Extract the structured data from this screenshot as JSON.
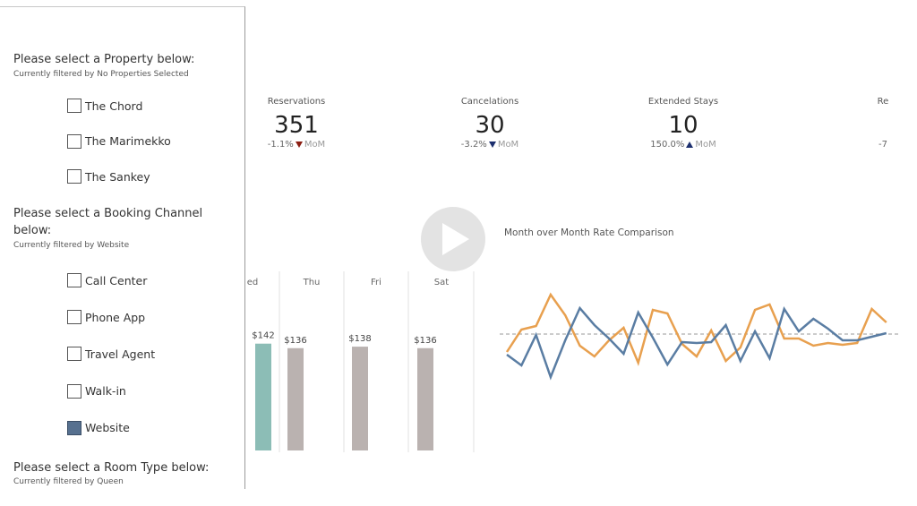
{
  "filters": [
    {
      "title": "Please select a Property below:",
      "subtitle": "Currently filtered by No Properties Selected",
      "options": [
        {
          "label": "The Chord",
          "checked": false
        },
        {
          "label": "The Marimekko",
          "checked": false
        },
        {
          "label": "The Sankey",
          "checked": false
        }
      ]
    },
    {
      "title": "Please select a Booking Channel below:",
      "subtitle": "Currently filtered by Website",
      "options": [
        {
          "label": "Call Center",
          "checked": false
        },
        {
          "label": "Phone App",
          "checked": false
        },
        {
          "label": "Travel Agent",
          "checked": false
        },
        {
          "label": "Walk-in",
          "checked": false
        },
        {
          "label": "Website",
          "checked": true
        }
      ]
    },
    {
      "title": "Please select a Room Type below:",
      "subtitle": "Currently filtered by Queen",
      "options": []
    }
  ],
  "kpis": [
    {
      "label": "Reservations",
      "value": "351",
      "change": "-1.1%",
      "direction": "down",
      "arrow_color": "#8b1d12",
      "unit": "MoM"
    },
    {
      "label": "Cancelations",
      "value": "30",
      "change": "-3.2%",
      "direction": "down",
      "arrow_color": "#1c2f6e",
      "unit": "MoM"
    },
    {
      "label": "Extended Stays",
      "value": "10",
      "change": "150.0%",
      "direction": "up",
      "arrow_color": "#1c2f6e",
      "unit": "MoM"
    },
    {
      "label": "Re",
      "change": "-7"
    }
  ],
  "bar_chart": {
    "type": "bar",
    "categories": [
      "ed",
      "Thu",
      "Fri",
      "Sat"
    ],
    "values": [
      142,
      136,
      138,
      136
    ],
    "value_labels": [
      "$142",
      "$136",
      "$138",
      "$136"
    ],
    "colors": [
      "#8cbdb6",
      "#bab2b0",
      "#bab2b0",
      "#bab2b0"
    ]
  },
  "line_chart": {
    "type": "line",
    "title": "Month over Month Rate Comparison",
    "reference": 0,
    "series": [
      {
        "color": "#e8a04f",
        "values": [
          -4,
          1,
          1.8,
          8.8,
          4.2,
          -2.6,
          -5,
          -1.4,
          1.4,
          -6.4,
          5.4,
          4.6,
          -2.2,
          -5,
          0.8,
          -6,
          -3,
          5.4,
          6.6,
          -1,
          -1,
          -2.6,
          -2,
          -2.4,
          -2,
          5.6,
          2.6
        ]
      },
      {
        "color": "#5a7da3",
        "values": [
          -4.6,
          -7,
          -0.2,
          -9.6,
          -1.4,
          5.8,
          2,
          -1,
          -4.4,
          4.8,
          -0.8,
          -6.8,
          -1.8,
          -2,
          -1.8,
          2,
          -6,
          0.6,
          -5.4,
          5.6,
          0.6,
          3.4,
          1.2,
          -1.4,
          -1.4,
          -0.6,
          0.2
        ]
      }
    ]
  }
}
